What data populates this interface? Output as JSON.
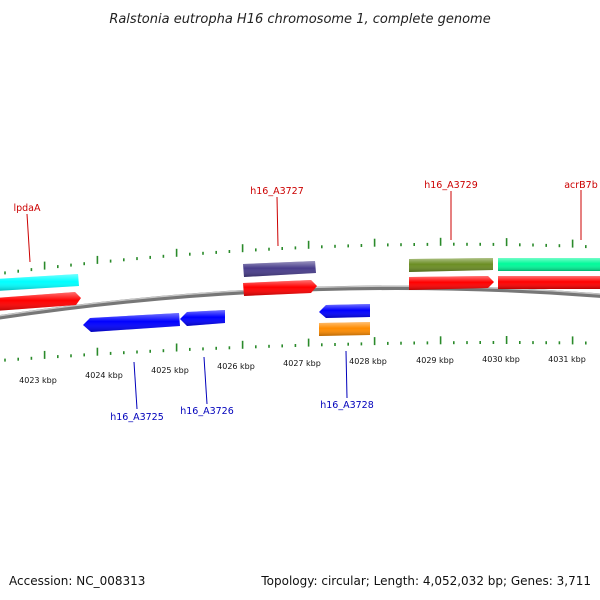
{
  "header": {
    "title": "Ralstonia eutropha H16 chromosome 1, complete genome"
  },
  "footer": {
    "accession": "Accession: NC_008313",
    "summary": "Topology: circular; Length: 4,052,032 bp; Genes: 3,711"
  },
  "colors": {
    "backbone": "#8c8c8c",
    "tick": "#2a8a2a",
    "forward_label": "#cc0000",
    "reverse_label": "#0000bb",
    "forward_strand": "#ff0000",
    "reverse_strand": "#0000ff"
  },
  "scale_labels": [
    "4023 kbp",
    "4024 kbp",
    "4025 kbp",
    "4026 kbp",
    "4027 kbp",
    "4028 kbp",
    "4029 kbp",
    "4030 kbp",
    "4031 kbp"
  ],
  "forward_labels": [
    "lpdaA",
    "h16_A3727",
    "h16_A3729",
    "acrB7b"
  ],
  "reverse_labels": [
    "h16_A3725",
    "h16_A3726",
    "h16_A3728"
  ],
  "features": [
    {
      "name": "lpdaA-gene",
      "color": "#00ffff"
    },
    {
      "name": "lpdaA-cds",
      "color": "#ff0000"
    },
    {
      "name": "h16_A3727-feature",
      "color": "#483d8b"
    },
    {
      "name": "h16_A3727-cds",
      "color": "#ff0000"
    },
    {
      "name": "h16_A3729-feature",
      "color": "#6b8e23"
    },
    {
      "name": "h16_A3729-cds",
      "color": "#ff0000"
    },
    {
      "name": "acrB7b-feature",
      "color": "#00fa9a"
    },
    {
      "name": "acrB7b-cds",
      "color": "#ff0000"
    },
    {
      "name": "h16_A3725-cds",
      "color": "#0000ff"
    },
    {
      "name": "h16_A3726-cds",
      "color": "#0000ff"
    },
    {
      "name": "h16_A3728-cds",
      "color": "#0000ff"
    },
    {
      "name": "h16_A3728-feature",
      "color": "#ff8c00"
    }
  ]
}
